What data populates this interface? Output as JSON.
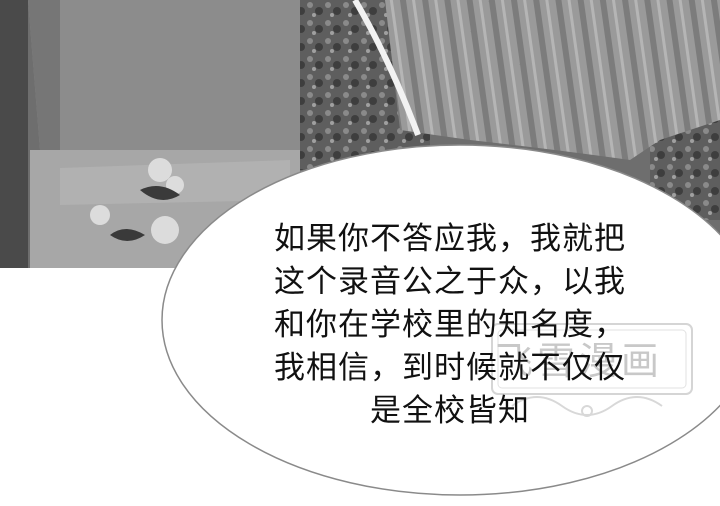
{
  "speech_bubble": {
    "lines": [
      "如果你不答应我，我就把",
      "这个录音公之于众，以我",
      "和你在学校里的知名度，",
      "我相信，到时候就不仅仅",
      "是全校皆知"
    ]
  },
  "watermark": {
    "text": "飞雪漫画"
  },
  "colors": {
    "panel_gray": "#7a7a7a",
    "bubble_fill": "#ffffff",
    "text": "#111111"
  }
}
